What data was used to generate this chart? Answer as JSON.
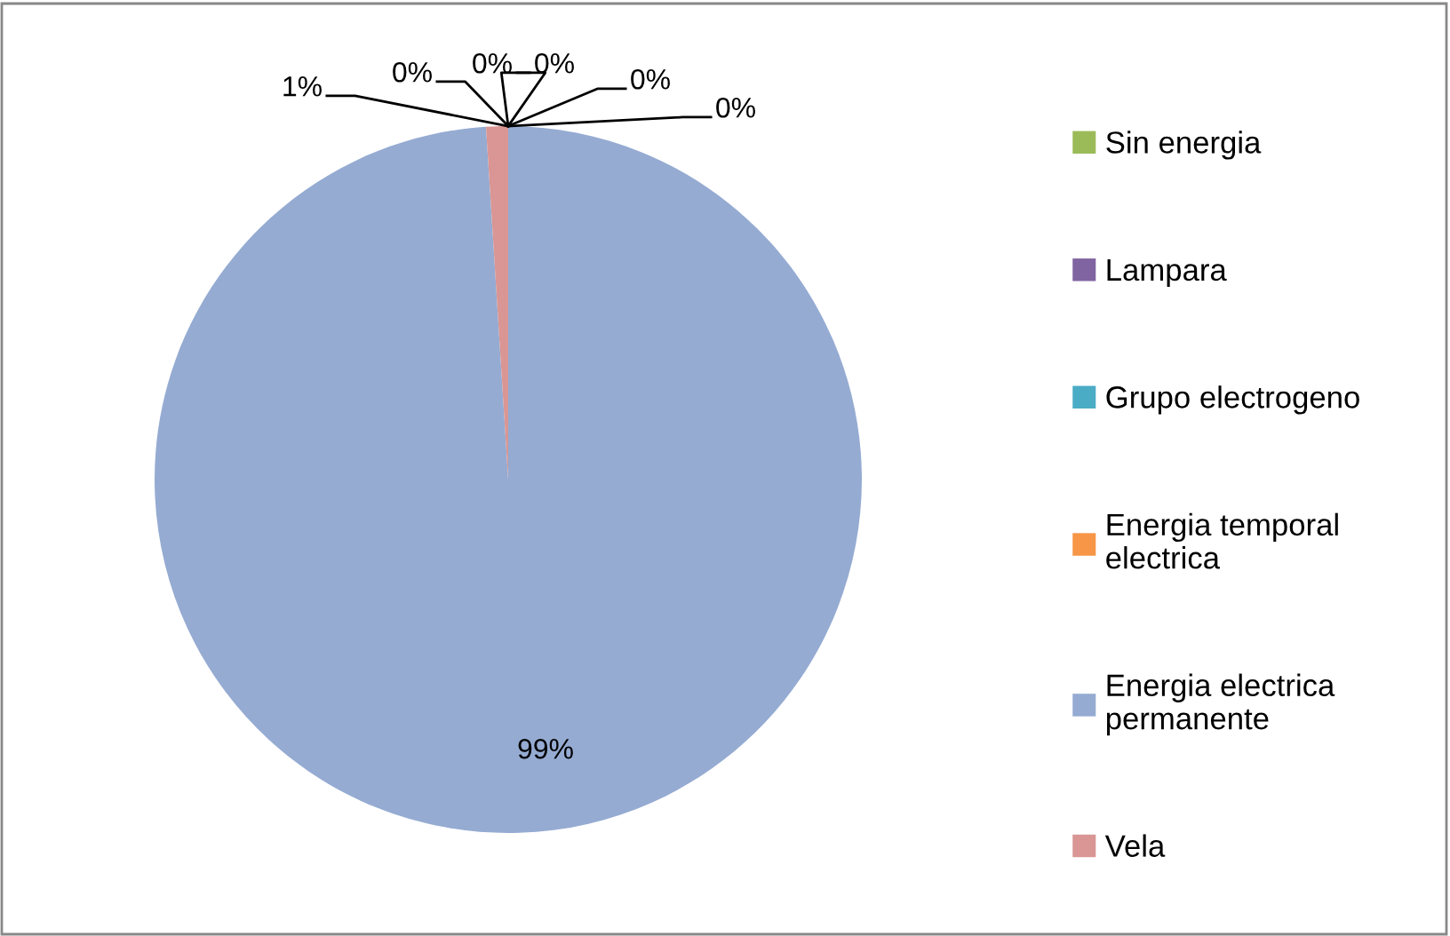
{
  "chart_data": {
    "type": "pie",
    "categories": [
      "Sin energia",
      "Lampara",
      "Grupo electrogeno",
      "Energia temporal electrica",
      "Energia electrica permanente",
      "Vela",
      null
    ],
    "values": [
      0,
      0,
      0,
      0,
      99,
      1,
      0
    ],
    "colors": [
      "#9bbb59",
      "#8064a2",
      "#4bacc6",
      "#f79646",
      "#95abd2",
      "#d99694",
      "#c0504d"
    ],
    "value_labels": [
      "0%",
      "0%",
      "0%",
      "0%",
      "99%",
      "1%",
      "0%"
    ],
    "legend": "right"
  }
}
